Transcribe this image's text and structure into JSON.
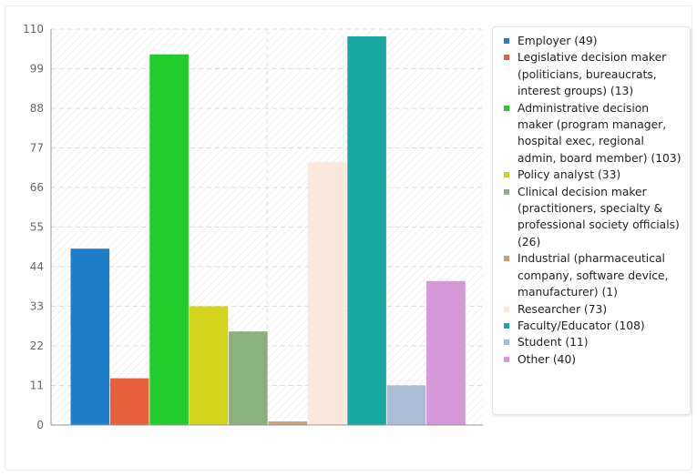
{
  "chart_data": {
    "type": "bar",
    "title": "",
    "xlabel": "",
    "ylabel": "",
    "ylim": [
      0,
      110
    ],
    "yticks": [
      0,
      11,
      22,
      33,
      44,
      55,
      66,
      77,
      88,
      99,
      110
    ],
    "grid": true,
    "legend_position": "right",
    "series": [
      {
        "name": "Employer (49)",
        "value": 49,
        "color": "#1f7ec8"
      },
      {
        "name": "Legislative decision maker (politicians, bureaucrats, interest groups) (13)",
        "value": 13,
        "color": "#e8603a"
      },
      {
        "name": "Administrative decision maker (program manager, hospital exec, regional admin, board member) (103)",
        "value": 103,
        "color": "#22cc2a"
      },
      {
        "name": "Policy analyst (33)",
        "value": 33,
        "color": "#d4d41e"
      },
      {
        "name": "Clinical decision maker (practitioners, specialty & professional society officials) (26)",
        "value": 26,
        "color": "#8ab07e"
      },
      {
        "name": "Industrial (pharmaceutical company, software device, manufacturer) (1)",
        "value": 1,
        "color": "#c9a27c"
      },
      {
        "name": "Researcher (73)",
        "value": 73,
        "color": "#fbe6dc"
      },
      {
        "name": "Faculty/Educator (108)",
        "value": 108,
        "color": "#18a8a0"
      },
      {
        "name": "Student (11)",
        "value": 11,
        "color": "#a8bcd4"
      },
      {
        "name": "Other (40)",
        "value": 40,
        "color": "#d597d7"
      }
    ]
  }
}
